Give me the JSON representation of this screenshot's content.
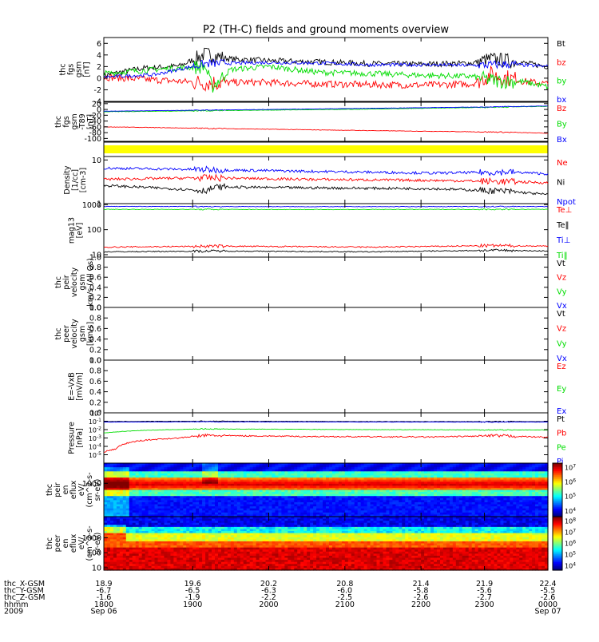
{
  "title": "P2 (TH-C) fields and ground moments overview",
  "colors": {
    "black": "#000000",
    "red": "#ff0000",
    "green": "#00dd00",
    "blue": "#0000ff",
    "yellow": "#ffff00"
  },
  "chart_data": [
    {
      "type": "line",
      "panel": "fgs-gsm",
      "ylabel": [
        "thc",
        "fgs",
        "gsm",
        "[nT]"
      ],
      "ylim": [
        -4,
        7
      ],
      "ticks": [
        -4,
        -2,
        0,
        2,
        4,
        6
      ],
      "legend": [
        {
          "name": "Bt",
          "color": "black"
        },
        {
          "name": "bz",
          "color": "red"
        },
        {
          "name": "by",
          "color": "green"
        },
        {
          "name": "bx",
          "color": "blue"
        }
      ],
      "series": [
        {
          "name": "Bt",
          "color": "black",
          "points": [
            [
              18.9,
              0.5
            ],
            [
              19.2,
              1.7
            ],
            [
              19.5,
              2.1
            ],
            [
              19.7,
              4.2
            ],
            [
              19.9,
              3.3
            ],
            [
              20.2,
              3.0
            ],
            [
              20.6,
              2.8
            ],
            [
              21.0,
              2.5
            ],
            [
              21.4,
              2.4
            ],
            [
              21.8,
              2.6
            ],
            [
              21.95,
              3.3
            ],
            [
              22.1,
              3.0
            ],
            [
              22.4,
              2.0
            ]
          ],
          "noise": 0.5
        },
        {
          "name": "bz",
          "color": "red",
          "points": [
            [
              18.9,
              0.2
            ],
            [
              19.3,
              -0.3
            ],
            [
              19.7,
              -0.8
            ],
            [
              20.1,
              -0.7
            ],
            [
              20.6,
              -1.0
            ],
            [
              21.0,
              -1.1
            ],
            [
              21.4,
              -1.2
            ],
            [
              21.8,
              -1.0
            ],
            [
              21.95,
              0.6
            ],
            [
              22.2,
              -0.5
            ],
            [
              22.4,
              -1.0
            ]
          ],
          "noise": 0.6
        },
        {
          "name": "by",
          "color": "green",
          "points": [
            [
              18.9,
              0.8
            ],
            [
              19.3,
              1.5
            ],
            [
              19.7,
              2.0
            ],
            [
              19.75,
              -1.5
            ],
            [
              19.9,
              1.5
            ],
            [
              20.2,
              2.0
            ],
            [
              20.6,
              1.0
            ],
            [
              21.0,
              0.8
            ],
            [
              21.4,
              0.5
            ],
            [
              21.8,
              0.3
            ],
            [
              22.0,
              -0.5
            ],
            [
              22.2,
              -0.6
            ],
            [
              22.4,
              -1.5
            ]
          ],
          "noise": 0.5
        },
        {
          "name": "bx",
          "color": "blue",
          "points": [
            [
              18.9,
              0.2
            ],
            [
              19.3,
              0.6
            ],
            [
              19.7,
              2.5
            ],
            [
              20.2,
              2.7
            ],
            [
              20.6,
              2.6
            ],
            [
              21.0,
              2.3
            ],
            [
              21.4,
              2.3
            ],
            [
              21.8,
              2.2
            ],
            [
              22.1,
              2.4
            ],
            [
              22.4,
              2.0
            ]
          ],
          "noise": 0.3
        }
      ]
    },
    {
      "type": "line",
      "panel": "fgs-gsm-t89",
      "ylabel": [
        "thc",
        "fgs",
        "gsm",
        "-T89",
        "[nT]"
      ],
      "ylim": [
        -110,
        25
      ],
      "ticks": [
        -100,
        -80,
        -60,
        -40,
        -20,
        0,
        20
      ],
      "legend": [
        {
          "name": "Bz",
          "color": "red"
        },
        {
          "name": "By",
          "color": "green"
        },
        {
          "name": "Bx",
          "color": "blue"
        }
      ],
      "series": [
        {
          "name": "Bz",
          "color": "red",
          "points": [
            [
              18.9,
              -60
            ],
            [
              20.0,
              -67
            ],
            [
              21.0,
              -73
            ],
            [
              22.0,
              -78
            ],
            [
              22.4,
              -82
            ]
          ],
          "noise": 0.8
        },
        {
          "name": "By",
          "color": "green",
          "points": [
            [
              18.9,
              -8
            ],
            [
              20.0,
              -3
            ],
            [
              21.0,
              1
            ],
            [
              22.0,
              8
            ],
            [
              22.4,
              11
            ]
          ],
          "noise": 0.8
        },
        {
          "name": "Bx",
          "color": "blue",
          "points": [
            [
              18.9,
              -6
            ],
            [
              20.0,
              -1
            ],
            [
              21.0,
              4
            ],
            [
              22.0,
              9
            ],
            [
              22.4,
              12
            ]
          ],
          "noise": 0.5
        }
      ]
    },
    {
      "type": "band",
      "panel": "flag",
      "color": "yellow"
    },
    {
      "type": "line",
      "panel": "density",
      "ylabel": [
        "Density",
        "[1/cc]",
        "[cm-3]"
      ],
      "yscale": "log",
      "ylim": [
        1,
        12
      ],
      "ticks": [
        1,
        10
      ],
      "legend": [
        {
          "name": "Ne",
          "color": "red"
        },
        {
          "name": "Ni",
          "color": "black"
        },
        {
          "name": "Npot",
          "color": "blue"
        }
      ],
      "series": [
        {
          "name": "Npot",
          "color": "blue",
          "points": [
            [
              18.9,
              6.5
            ],
            [
              19.7,
              6.0
            ],
            [
              20.5,
              5.5
            ],
            [
              21.5,
              5.0
            ],
            [
              22.1,
              5.3
            ],
            [
              22.4,
              4.8
            ]
          ],
          "noise": 0.06
        },
        {
          "name": "Ne",
          "color": "red",
          "points": [
            [
              18.9,
              3.6
            ],
            [
              19.7,
              3.9
            ],
            [
              20.5,
              3.6
            ],
            [
              21.5,
              3.4
            ],
            [
              22.1,
              3.2
            ],
            [
              22.4,
              3.0
            ]
          ],
          "noise": 0.06
        },
        {
          "name": "Ni",
          "color": "black",
          "points": [
            [
              18.9,
              2.6
            ],
            [
              19.7,
              2.0
            ],
            [
              19.8,
              2.4
            ],
            [
              20.5,
              2.3
            ],
            [
              21.5,
              2.2
            ],
            [
              22.1,
              1.9
            ],
            [
              22.4,
              1.6
            ]
          ],
          "noise": 0.06
        }
      ]
    },
    {
      "type": "line",
      "panel": "temperature",
      "ylabel": [
        "mag13",
        "[eV]"
      ],
      "yscale": "log",
      "ylim": [
        8,
        1100
      ],
      "ticks": [
        10,
        100,
        1000
      ],
      "legend": [
        {
          "name": "Te⊥",
          "color": "red"
        },
        {
          "name": "Te‖",
          "color": "black"
        },
        {
          "name": "Ti⊥",
          "color": "blue"
        },
        {
          "name": "Ti‖",
          "color": "green"
        }
      ],
      "series": [
        {
          "name": "Ti⊥",
          "color": "blue",
          "points": [
            [
              18.9,
              850
            ],
            [
              20.5,
              830
            ],
            [
              22.4,
              840
            ]
          ],
          "noise": 0.02
        },
        {
          "name": "Ti‖",
          "color": "green",
          "points": [
            [
              18.9,
              650
            ],
            [
              20.5,
              640
            ],
            [
              22.4,
              650
            ]
          ],
          "noise": 0.02
        },
        {
          "name": "Te⊥",
          "color": "red",
          "points": [
            [
              18.9,
              20
            ],
            [
              19.8,
              22
            ],
            [
              21.0,
              20
            ],
            [
              22.0,
              23
            ],
            [
              22.4,
              22
            ]
          ],
          "noise": 0.05
        },
        {
          "name": "Te‖",
          "color": "black",
          "points": [
            [
              18.9,
              13
            ],
            [
              19.8,
              14
            ],
            [
              21.0,
              13
            ],
            [
              22.0,
              15
            ],
            [
              22.4,
              14
            ]
          ],
          "noise": 0.04
        }
      ]
    },
    {
      "type": "line",
      "panel": "peir-velocity",
      "ylabel": [
        "thc",
        "peir",
        "velocity",
        "gsm",
        "km/s (All Qs)"
      ],
      "ylim": [
        0,
        1
      ],
      "ticks": [
        "0.0",
        "0.2",
        "0.4",
        "0.6",
        "0.8",
        "1.0"
      ],
      "legend": [
        {
          "name": "Vt",
          "color": "black"
        },
        {
          "name": "Vz",
          "color": "red"
        },
        {
          "name": "Vy",
          "color": "green"
        },
        {
          "name": "Vx",
          "color": "blue"
        }
      ],
      "series": []
    },
    {
      "type": "line",
      "panel": "peer-velocity",
      "ylabel": [
        "thc",
        "peer",
        "velocity",
        "gsm",
        "[km/s]"
      ],
      "ylim": [
        0,
        1
      ],
      "ticks": [
        "0.0",
        "0.2",
        "0.4",
        "0.6",
        "0.8",
        "1.0"
      ],
      "legend": [
        {
          "name": "Vt",
          "color": "black"
        },
        {
          "name": "Vz",
          "color": "red"
        },
        {
          "name": "Vy",
          "color": "green"
        },
        {
          "name": "Vx",
          "color": "blue"
        }
      ],
      "series": []
    },
    {
      "type": "line",
      "panel": "efield",
      "ylabel": [
        "E=-VxB",
        "[mV/m]"
      ],
      "ylim": [
        0,
        1
      ],
      "ticks": [
        "0.0",
        "0.2",
        "0.4",
        "0.6",
        "0.8",
        "1.0"
      ],
      "legend": [
        {
          "name": "Ez",
          "color": "red"
        },
        {
          "name": "Ey",
          "color": "green"
        },
        {
          "name": "Ex",
          "color": "blue"
        }
      ],
      "series": []
    },
    {
      "type": "line",
      "panel": "pressure",
      "ylabel": [
        "Pressure",
        "[nPa]"
      ],
      "yscale": "log",
      "ylim": [
        1e-06,
        1
      ],
      "ticks": [
        "10^-5",
        "10^-4",
        "10^-3",
        "10^-2",
        "10^-1",
        "10^0"
      ],
      "legend": [
        {
          "name": "Pt",
          "color": "black"
        },
        {
          "name": "Pb",
          "color": "red"
        },
        {
          "name": "Pe",
          "color": "green"
        },
        {
          "name": "Pi",
          "color": "blue"
        }
      ],
      "series": [
        {
          "name": "Pt",
          "color": "black",
          "points": [
            [
              18.9,
              0.09
            ],
            [
              19.7,
              0.1
            ],
            [
              21.0,
              0.09
            ],
            [
              22.4,
              0.09
            ]
          ],
          "noise": 0.05
        },
        {
          "name": "Pi",
          "color": "blue",
          "points": [
            [
              18.9,
              0.08
            ],
            [
              19.7,
              0.085
            ],
            [
              21.0,
              0.08
            ],
            [
              22.4,
              0.08
            ]
          ],
          "noise": 0.04
        },
        {
          "name": "Pe",
          "color": "green",
          "points": [
            [
              18.9,
              0.004
            ],
            [
              19.2,
              0.008
            ],
            [
              19.7,
              0.012
            ],
            [
              21.0,
              0.01
            ],
            [
              22.4,
              0.009
            ]
          ],
          "noise": 0.05
        },
        {
          "name": "Pb",
          "color": "red",
          "points": [
            [
              18.9,
              2e-05
            ],
            [
              19.0,
              5e-05
            ],
            [
              19.2,
              0.0005
            ],
            [
              19.5,
              0.001
            ],
            [
              19.7,
              0.002
            ],
            [
              20.5,
              0.0015
            ],
            [
              21.5,
              0.0013
            ],
            [
              22.0,
              0.0018
            ],
            [
              22.4,
              0.0012
            ]
          ],
          "noise": 0.15
        }
      ]
    },
    {
      "type": "heatmap",
      "panel": "peir-eflux",
      "ylabel": [
        "thc",
        "peir",
        "en",
        "eflux",
        "eV/",
        "(cm^2-s-",
        "sr-eV)"
      ],
      "yscale": "log",
      "ylim": [
        5,
        25000
      ],
      "ticks": [
        1000
      ],
      "colorbar": {
        "ticks": [
          "10^4",
          "10^5",
          "10^6",
          "10^7"
        ],
        "range": [
          3.6,
          7.3
        ]
      }
    },
    {
      "type": "heatmap",
      "panel": "peer-eflux",
      "ylabel": [
        "thc",
        "peer",
        "en",
        "eflux",
        "eV/",
        "(cm^2-s-",
        "sr-eV)"
      ],
      "yscale": "log",
      "ylim": [
        7,
        25000
      ],
      "ticks": [
        10,
        100,
        1000
      ],
      "colorbar": {
        "ticks": [
          "10^4",
          "10^5",
          "10^6",
          "10^7",
          "10^8"
        ],
        "range": [
          3.6,
          8.4
        ]
      }
    }
  ],
  "xaxis": {
    "rows": [
      {
        "label": "thc_X-GSM",
        "values": [
          "18.9",
          "19.6",
          "20.2",
          "20.8",
          "21.4",
          "21.9",
          "22.4"
        ]
      },
      {
        "label": "thc_Y-GSM",
        "values": [
          "-6.7",
          "-6.5",
          "-6.3",
          "-6.0",
          "-5.8",
          "-5.6",
          "-5.5"
        ]
      },
      {
        "label": "thc_Z-GSM",
        "values": [
          "-1.6",
          "-1.9",
          "-2.2",
          "-2.5",
          "-2.6",
          "-2.7",
          "-2.6"
        ]
      },
      {
        "label": "hhmm",
        "values": [
          "1800",
          "1900",
          "2000",
          "2100",
          "2200",
          "2300",
          "0000"
        ]
      },
      {
        "label": "2009",
        "values": [
          "Sep 06",
          "",
          "",
          "",
          "",
          "",
          "Sep 07"
        ]
      }
    ],
    "tick_positions": [
      18.9,
      19.6,
      20.2,
      20.8,
      21.4,
      21.9,
      22.4
    ]
  }
}
